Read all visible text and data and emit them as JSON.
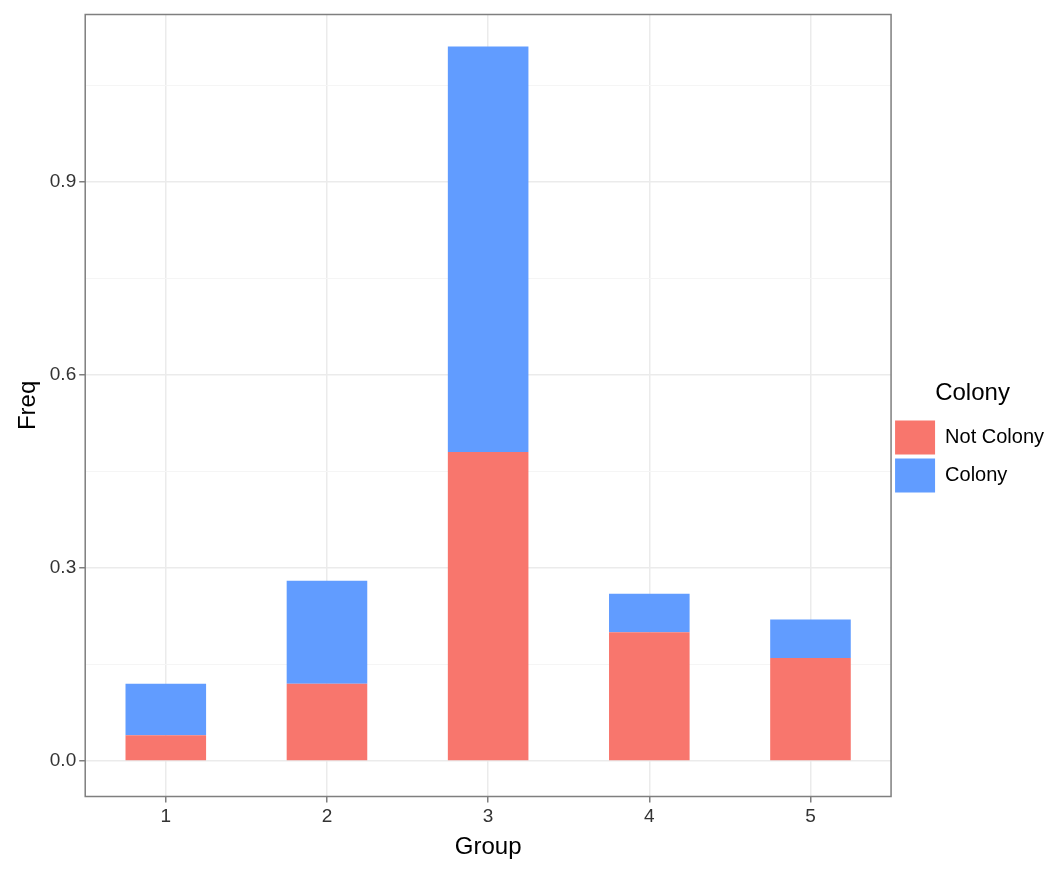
{
  "chart_data": {
    "type": "bar",
    "xlabel": "Group",
    "ylabel": "Freq",
    "legend_title": "Colony",
    "categories": [
      "1",
      "2",
      "3",
      "4",
      "5"
    ],
    "series": [
      {
        "name": "Not Colony",
        "color": "#f8766d",
        "values": [
          0.04,
          0.12,
          0.48,
          0.2,
          0.16
        ]
      },
      {
        "name": "Colony",
        "color": "#619cff",
        "values": [
          0.08,
          0.16,
          0.63,
          0.06,
          0.06
        ]
      }
    ],
    "stacked": true,
    "ylim": [
      -0.055,
      1.16
    ],
    "yticks": [
      {
        "value": 0,
        "label": "0.0"
      },
      {
        "value": 0.15,
        "label": null
      },
      0.3,
      {
        "value": 0.45,
        "label": null
      },
      0.6,
      {
        "value": 0.75,
        "label": null
      },
      0.9,
      {
        "value": 1.05,
        "label": null
      }
    ],
    "grid": true,
    "legend": "right"
  }
}
